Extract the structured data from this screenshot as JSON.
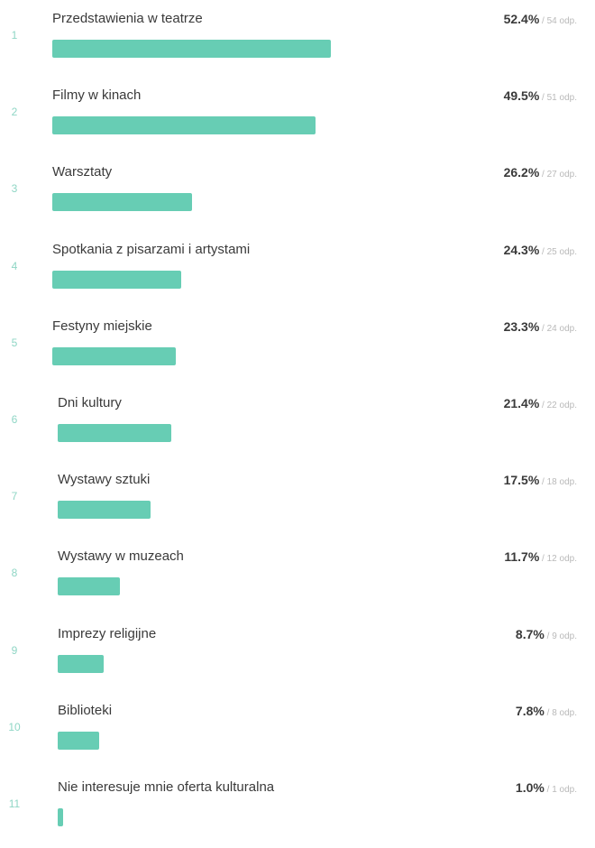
{
  "chart_data": {
    "type": "bar",
    "orientation": "horizontal",
    "bar_color": "#67cdb4",
    "count_suffix": "odp.",
    "items": [
      {
        "rank": "1",
        "label": "Przedstawienia w teatrze",
        "percent": 52.4,
        "percent_label": "52.4%",
        "count": 54
      },
      {
        "rank": "2",
        "label": "Filmy w kinach",
        "percent": 49.5,
        "percent_label": "49.5%",
        "count": 51
      },
      {
        "rank": "3",
        "label": "Warsztaty",
        "percent": 26.2,
        "percent_label": "26.2%",
        "count": 27
      },
      {
        "rank": "4",
        "label": "Spotkania z pisarzami i artystami",
        "percent": 24.3,
        "percent_label": "24.3%",
        "count": 25
      },
      {
        "rank": "5",
        "label": "Festyny miejskie",
        "percent": 23.3,
        "percent_label": "23.3%",
        "count": 24
      },
      {
        "rank": "6",
        "label": "Dni kultury",
        "percent": 21.4,
        "percent_label": "21.4%",
        "count": 22
      },
      {
        "rank": "7",
        "label": "Wystawy sztuki",
        "percent": 17.5,
        "percent_label": "17.5%",
        "count": 18
      },
      {
        "rank": "8",
        "label": "Wystawy w muzeach",
        "percent": 11.7,
        "percent_label": "11.7%",
        "count": 12
      },
      {
        "rank": "9",
        "label": "Imprezy religijne",
        "percent": 8.7,
        "percent_label": "8.7%",
        "count": 9
      },
      {
        "rank": "10",
        "label": "Biblioteki",
        "percent": 7.8,
        "percent_label": "7.8%",
        "count": 8
      },
      {
        "rank": "11",
        "label": "Nie interesuje mnie oferta kulturalna",
        "percent": 1.0,
        "percent_label": "1.0%",
        "count": 1
      }
    ]
  }
}
